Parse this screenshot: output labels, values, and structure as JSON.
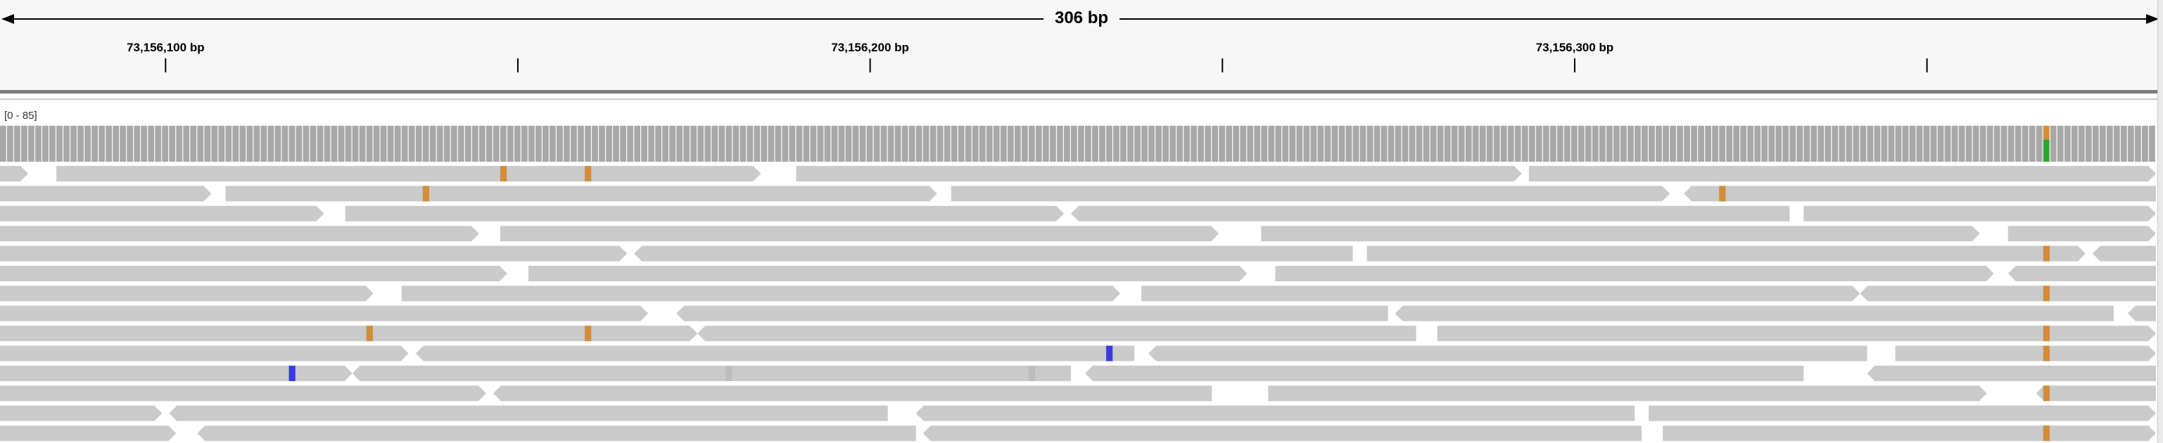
{
  "ruler": {
    "span_label": "306 bp",
    "ticks": [
      {
        "pos": 73156100,
        "label": "73,156,100 bp"
      },
      {
        "pos": 73156150,
        "label": ""
      },
      {
        "pos": 73156200,
        "label": "73,156,200 bp"
      },
      {
        "pos": 73156250,
        "label": ""
      },
      {
        "pos": 73156300,
        "label": "73,156,300 bp"
      },
      {
        "pos": 73156350,
        "label": ""
      }
    ]
  },
  "region": {
    "start": 73156077,
    "end": 73156383
  },
  "coverage": {
    "range_label": "[0 - 85]",
    "bar_color": "#a8a8a8",
    "level_fraction": 0.8,
    "variant_column": {
      "pos": 73156367,
      "alleles": [
        {
          "base": "A",
          "color": "#2ea22e",
          "fraction": 0.62
        },
        {
          "base": "G",
          "color": "#d18d3a",
          "fraction": 0.38
        }
      ]
    }
  },
  "colors": {
    "read": "#cacaca",
    "mismatch_G": "#d18d3a",
    "mismatch_C": "#3a3ae0",
    "low_quality": "#bdbdbd"
  },
  "alignments": {
    "rows": [
      [
        {
          "start": 73156077,
          "end": 73156081,
          "strand": "+"
        },
        {
          "start": 73156085,
          "end": 73156185,
          "strand": "+",
          "mismatches": [
            {
              "pos": 73156148,
              "base": "G"
            },
            {
              "pos": 73156160,
              "base": "G"
            }
          ]
        },
        {
          "start": 73156190,
          "end": 73156293,
          "strand": "+"
        },
        {
          "start": 73156294,
          "end": 73156383,
          "strand": "+"
        }
      ],
      [
        {
          "start": 73156077,
          "end": 73156107,
          "strand": "+"
        },
        {
          "start": 73156109,
          "end": 73156210,
          "strand": "+",
          "mismatches": [
            {
              "pos": 73156137,
              "base": "G"
            }
          ]
        },
        {
          "start": 73156212,
          "end": 73156314,
          "strand": "+"
        },
        {
          "start": 73156316,
          "end": 73156383,
          "strand": "-",
          "mismatches": [
            {
              "pos": 73156321,
              "base": "G"
            }
          ]
        }
      ],
      [
        {
          "start": 73156077,
          "end": 73156123,
          "strand": "+"
        },
        {
          "start": 73156126,
          "end": 73156228,
          "strand": "+"
        },
        {
          "start": 73156229,
          "end": 73156331,
          "strand": "-"
        },
        {
          "start": 73156333,
          "end": 73156383,
          "strand": "+"
        }
      ],
      [
        {
          "start": 73156077,
          "end": 73156145,
          "strand": "+"
        },
        {
          "start": 73156148,
          "end": 73156250,
          "strand": "+"
        },
        {
          "start": 73156256,
          "end": 73156358,
          "strand": "+"
        },
        {
          "start": 73156362,
          "end": 73156383,
          "strand": "+"
        }
      ],
      [
        {
          "start": 73156077,
          "end": 73156166,
          "strand": "+"
        },
        {
          "start": 73156167,
          "end": 73156269,
          "strand": "-"
        },
        {
          "start": 73156271,
          "end": 73156373,
          "strand": "+",
          "mismatches": [
            {
              "pos": 73156367,
              "base": "G"
            }
          ]
        },
        {
          "start": 73156374,
          "end": 73156383,
          "strand": "-"
        }
      ],
      [
        {
          "start": 73156077,
          "end": 73156149,
          "strand": "+"
        },
        {
          "start": 73156152,
          "end": 73156254,
          "strand": "+"
        },
        {
          "start": 73156258,
          "end": 73156360,
          "strand": "+"
        },
        {
          "start": 73156362,
          "end": 73156383,
          "strand": "-"
        }
      ],
      [
        {
          "start": 73156077,
          "end": 73156130,
          "strand": "+"
        },
        {
          "start": 73156134,
          "end": 73156236,
          "strand": "+"
        },
        {
          "start": 73156239,
          "end": 73156341,
          "strand": "+"
        },
        {
          "start": 73156341,
          "end": 73156383,
          "strand": "-",
          "mismatches": [
            {
              "pos": 73156367,
              "base": "G"
            }
          ]
        }
      ],
      [
        {
          "start": 73156077,
          "end": 73156169,
          "strand": "+"
        },
        {
          "start": 73156173,
          "end": 73156274,
          "strand": "-"
        },
        {
          "start": 73156275,
          "end": 73156377,
          "strand": "-"
        },
        {
          "start": 73156379,
          "end": 73156383,
          "strand": "-"
        }
      ],
      [
        {
          "start": 73156077,
          "end": 73156176,
          "strand": "+",
          "mismatches": [
            {
              "pos": 73156129,
              "base": "G"
            },
            {
              "pos": 73156160,
              "base": "G"
            }
          ]
        },
        {
          "start": 73156176,
          "end": 73156278,
          "strand": "-"
        },
        {
          "start": 73156281,
          "end": 73156383,
          "strand": "+",
          "mismatches": [
            {
              "pos": 73156367,
              "base": "G"
            }
          ]
        }
      ],
      [
        {
          "start": 73156077,
          "end": 73156135,
          "strand": "+"
        },
        {
          "start": 73156136,
          "end": 73156238,
          "strand": "-",
          "mismatches": [
            {
              "pos": 73156234,
              "base": "C"
            }
          ]
        },
        {
          "start": 73156240,
          "end": 73156342,
          "strand": "-"
        },
        {
          "start": 73156346,
          "end": 73156383,
          "strand": "+",
          "mismatches": [
            {
              "pos": 73156367,
              "base": "G"
            }
          ]
        }
      ],
      [
        {
          "start": 73156077,
          "end": 73156127,
          "strand": "+",
          "mismatches": [
            {
              "pos": 73156118,
              "base": "C"
            }
          ]
        },
        {
          "start": 73156127,
          "end": 73156229,
          "strand": "-",
          "mismatches": [
            {
              "pos": 73156180,
              "base": "N"
            },
            {
              "pos": 73156223,
              "base": "N"
            }
          ]
        },
        {
          "start": 73156231,
          "end": 73156333,
          "strand": "-"
        },
        {
          "start": 73156342,
          "end": 73156383,
          "strand": "-"
        }
      ],
      [
        {
          "start": 73156077,
          "end": 73156146,
          "strand": "+"
        },
        {
          "start": 73156147,
          "end": 73156249,
          "strand": "-"
        },
        {
          "start": 73156257,
          "end": 73156359,
          "strand": "+"
        },
        {
          "start": 73156366,
          "end": 73156383,
          "strand": "-",
          "mismatches": [
            {
              "pos": 73156367,
              "base": "G"
            }
          ]
        }
      ],
      [
        {
          "start": 73156077,
          "end": 73156100,
          "strand": "+"
        },
        {
          "start": 73156101,
          "end": 73156203,
          "strand": "-"
        },
        {
          "start": 73156207,
          "end": 73156309,
          "strand": "-"
        },
        {
          "start": 73156311,
          "end": 73156383,
          "strand": "+"
        }
      ],
      [
        {
          "start": 73156077,
          "end": 73156102,
          "strand": "+"
        },
        {
          "start": 73156105,
          "end": 73156207,
          "strand": "-"
        },
        {
          "start": 73156208,
          "end": 73156310,
          "strand": "-"
        },
        {
          "start": 73156313,
          "end": 73156383,
          "strand": "+",
          "mismatches": [
            {
              "pos": 73156367,
              "base": "G"
            }
          ]
        }
      ]
    ]
  }
}
